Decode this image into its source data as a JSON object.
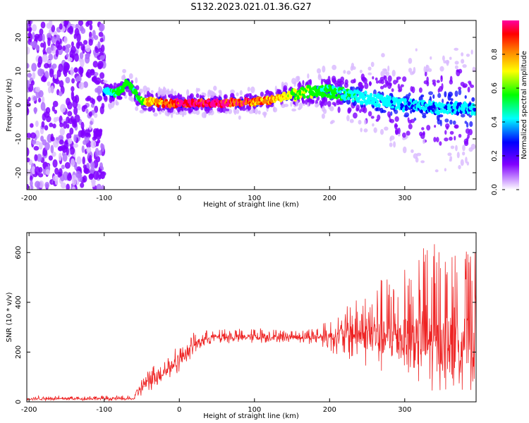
{
  "title": "S132.2023.021.01.36.G27",
  "chart_data": [
    {
      "type": "heatmap",
      "xlabel": "Height of straight line (km)",
      "ylabel": "Frequency (Hz)",
      "xlim": [
        -203,
        395
      ],
      "ylim": [
        -25,
        25
      ],
      "x_ticks": [
        -200,
        -100,
        0,
        100,
        200,
        300
      ],
      "y_ticks": [
        -20,
        -10,
        0,
        10,
        20
      ],
      "colorbar": {
        "label": "Normalized spectral amplitude",
        "range": [
          0,
          1
        ],
        "ticks": [
          0.0,
          0.2,
          0.4,
          0.6,
          0.8
        ],
        "colors": [
          "#ffffff",
          "#8000ff",
          "#0000ff",
          "#00ffff",
          "#00ff00",
          "#ffff00",
          "#ff8000",
          "#ff0000",
          "#ff00a0"
        ]
      },
      "ridge": {
        "x": [
          -100,
          -90,
          -80,
          -70,
          -60,
          -50,
          -40,
          -20,
          0,
          50,
          100,
          120,
          150,
          175,
          200,
          250,
          300,
          350,
          395
        ],
        "freq": [
          4,
          3.5,
          4,
          6.5,
          4,
          1,
          1,
          0.5,
          0.5,
          0.5,
          1,
          1.5,
          3,
          4,
          4,
          2,
          0,
          -1,
          -1
        ],
        "amplitude": [
          0.3,
          0.4,
          0.45,
          0.5,
          0.45,
          0.5,
          0.7,
          0.8,
          0.9,
          0.95,
          0.8,
          0.75,
          0.6,
          0.5,
          0.45,
          0.35,
          0.3,
          0.3,
          0.3
        ]
      },
      "noise_band": {
        "x_range": [
          -203,
          -100
        ],
        "freq_range": [
          -25,
          25
        ],
        "amplitude": 0.15
      }
    },
    {
      "type": "line",
      "xlabel": "Height of straight line (km)",
      "ylabel": "SNR (10 * v/v)",
      "xlim": [
        -203,
        395
      ],
      "ylim": [
        0,
        680
      ],
      "x_ticks": [
        -200,
        -100,
        0,
        100,
        200,
        300
      ],
      "y_ticks": [
        0,
        200,
        400,
        600
      ],
      "color": "#ee2222",
      "envelope": {
        "x": [
          -203,
          -60,
          -55,
          -40,
          -20,
          0,
          20,
          40,
          100,
          150,
          180,
          200,
          230,
          260,
          280,
          300,
          320,
          350,
          395
        ],
        "mid": [
          12,
          12,
          50,
          80,
          120,
          170,
          230,
          260,
          260,
          260,
          260,
          265,
          270,
          260,
          250,
          240,
          230,
          230,
          230
        ],
        "low": [
          5,
          5,
          15,
          40,
          80,
          120,
          190,
          230,
          235,
          240,
          230,
          200,
          160,
          120,
          90,
          60,
          40,
          40,
          40
        ],
        "high": [
          25,
          25,
          70,
          140,
          180,
          230,
          280,
          290,
          300,
          290,
          300,
          330,
          400,
          470,
          540,
          600,
          640,
          640,
          600
        ]
      }
    }
  ]
}
